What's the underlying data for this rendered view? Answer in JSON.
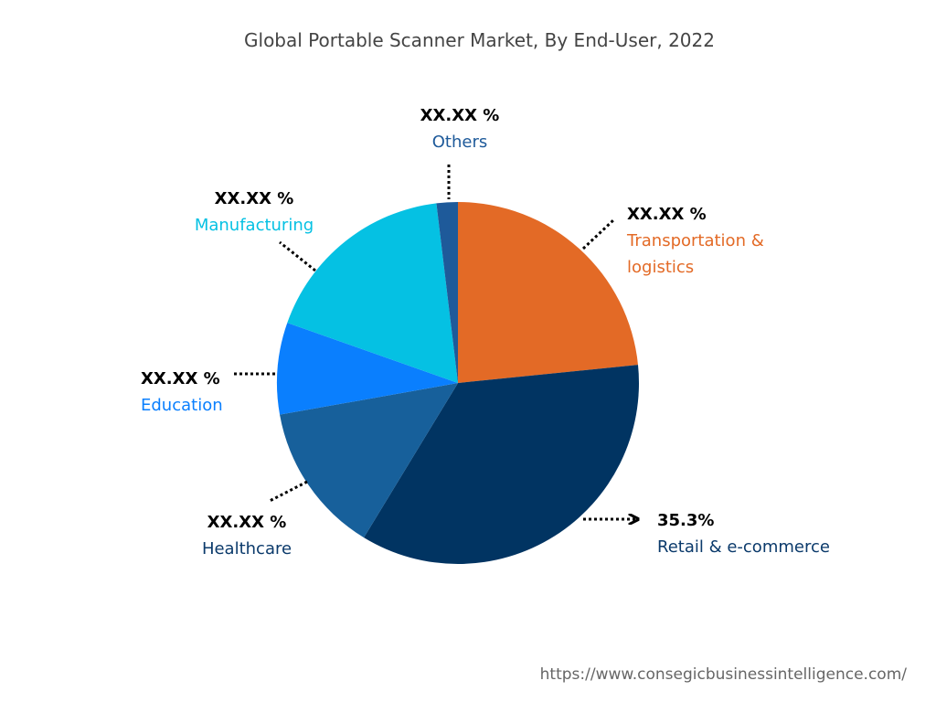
{
  "chart_data": {
    "type": "pie",
    "title": "Global Portable Scanner Market, By End-User, 2022",
    "categories": [
      "Transportation & logistics",
      "Retail & e-commerce",
      "Healthcare",
      "Education",
      "Manufacturing",
      "Others"
    ],
    "values": [
      23.4,
      35.3,
      13.5,
      8.2,
      17.7,
      1.9
    ],
    "value_labels": [
      "XX.XX %",
      "35.3%",
      "XX.XX %",
      "XX.XX %",
      "XX.XX %",
      "XX.XX %"
    ],
    "colors": [
      "#e36a26",
      "#013462",
      "#17609b",
      "#0a7ffe",
      "#05c1e3",
      "#1e5a9a"
    ],
    "source": "https://www.consegicbusinessintelligence.com/"
  }
}
